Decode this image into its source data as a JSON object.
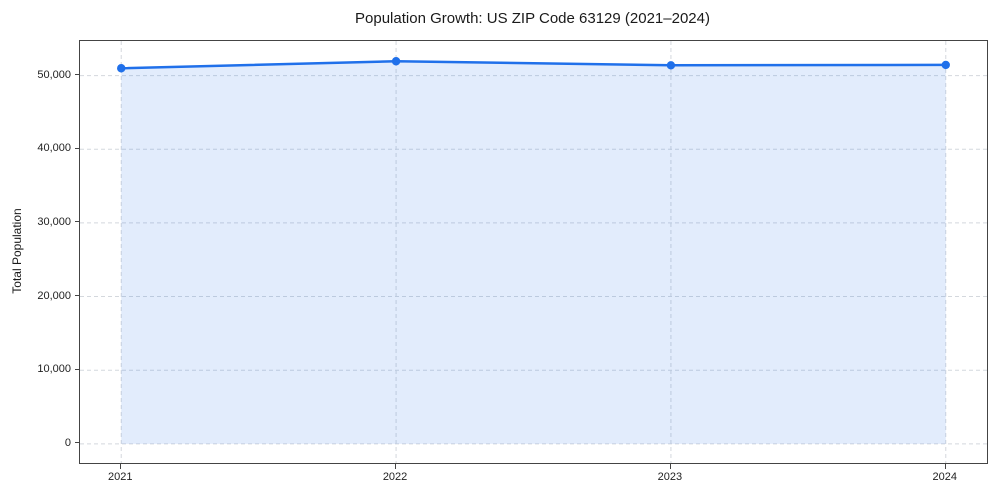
{
  "chart_data": {
    "type": "area",
    "title": "Population Growth: US ZIP Code 63129 (2021–2024)",
    "xlabel": "",
    "ylabel": "Total Population",
    "x": [
      2021,
      2022,
      2023,
      2024
    ],
    "x_tick_labels": [
      "2021",
      "2022",
      "2023",
      "2024"
    ],
    "series": [
      {
        "name": "Total Population",
        "values": [
          51000,
          51950,
          51400,
          51450
        ]
      }
    ],
    "fill_baseline": 0,
    "xlim": [
      2020.85,
      2024.15
    ],
    "ylim": [
      -2600,
      54700
    ],
    "y_ticks": [
      {
        "value": 0,
        "label": "0"
      },
      {
        "value": 10000,
        "label": "10,000"
      },
      {
        "value": 20000,
        "label": "20,000"
      },
      {
        "value": 30000,
        "label": "30,000"
      },
      {
        "value": 40000,
        "label": "40,000"
      },
      {
        "value": 50000,
        "label": "50,000"
      }
    ],
    "grid": true,
    "grid_style": "dashed",
    "legend": "none",
    "colors": {
      "line": "#2070ea",
      "marker": "#2070ea",
      "fill": "#2070ea",
      "fill_opacity": 0.13,
      "grid": "#d4d8dd",
      "spine": "#444444",
      "text": "#1f1f1f"
    }
  }
}
